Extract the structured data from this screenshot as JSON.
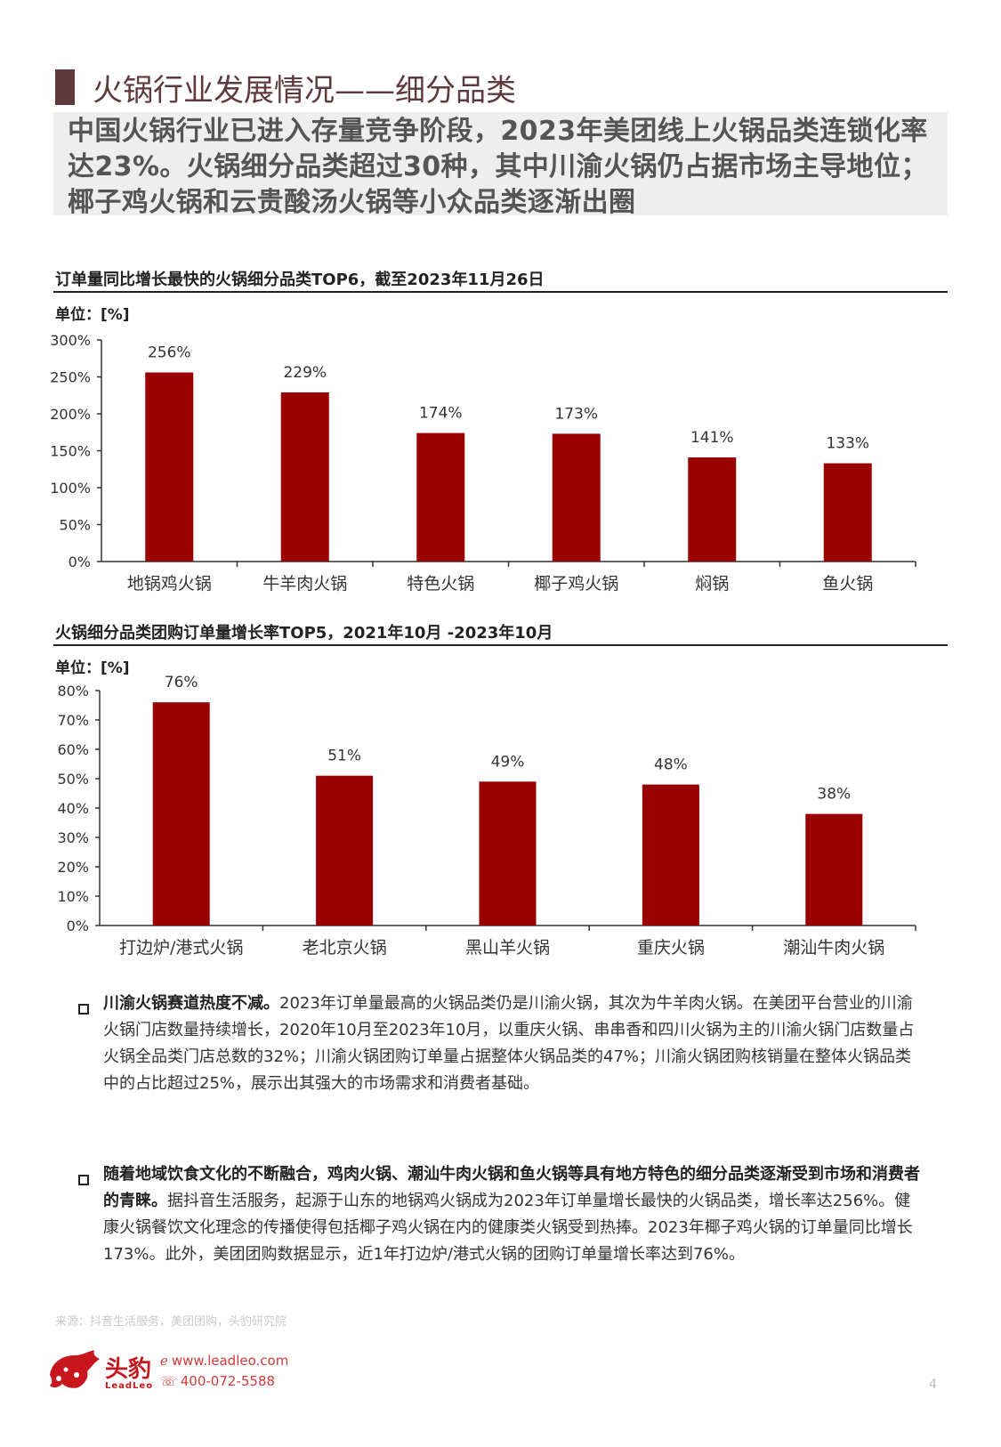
{
  "header": {
    "title": "火锅行业发展情况——细分品类",
    "summary": "中国火锅行业已进入存量竞争阶段，2023年美团线上火锅品类连锁化率达23%。火锅细分品类超过30种，其中川渝火锅仍占据市场主导地位；椰子鸡火锅和云贵酸汤火锅等小众品类逐渐出圈"
  },
  "colors": {
    "bar": "#990000",
    "accent": "#5e3a3c",
    "brand": "#c8161d"
  },
  "chart_data": [
    {
      "type": "bar",
      "title": "订单量同比增长最快的火锅细分品类TOP6，截至2023年11月26日",
      "unit": "单位：[%]",
      "categories": [
        "地锅鸡火锅",
        "牛羊肉火锅",
        "特色火锅",
        "椰子鸡火锅",
        "焖锅",
        "鱼火锅"
      ],
      "values": [
        256,
        229,
        174,
        173,
        141,
        133
      ],
      "data_labels": [
        "256%",
        "229%",
        "174%",
        "173%",
        "141%",
        "133%"
      ],
      "ylim": [
        0,
        300
      ],
      "yticks": [
        "0%",
        "50%",
        "100%",
        "150%",
        "200%",
        "250%",
        "300%"
      ],
      "grid": false,
      "legend": "none"
    },
    {
      "type": "bar",
      "title": "火锅细分品类团购订单量增长率TOP5，2021年10月 -2023年10月",
      "unit": "单位：[%]",
      "categories": [
        "打边炉/港式火锅",
        "老北京火锅",
        "黑山羊火锅",
        "重庆火锅",
        "潮汕牛肉火锅"
      ],
      "values": [
        76,
        51,
        49,
        48,
        38
      ],
      "data_labels": [
        "76%",
        "51%",
        "49%",
        "48%",
        "38%"
      ],
      "ylim": [
        0,
        80
      ],
      "yticks": [
        "0%",
        "10%",
        "20%",
        "30%",
        "40%",
        "50%",
        "60%",
        "70%",
        "80%"
      ],
      "grid": false,
      "legend": "none"
    }
  ],
  "bullets": [
    {
      "bold": "川渝火锅赛道热度不减。",
      "text": "2023年订单量最高的火锅品类仍是川渝火锅，其次为牛羊肉火锅。在美团平台营业的川渝火锅门店数量持续增长，2020年10月至2023年10月，以重庆火锅、串串香和四川火锅为主的川渝火锅门店数量占火锅全品类门店总数的32%；川渝火锅团购订单量占据整体火锅品类的47%；川渝火锅团购核销量在整体火锅品类中的占比超过25%，展示出其强大的市场需求和消费者基础。"
    },
    {
      "bold": "随着地域饮食文化的不断融合，鸡肉火锅、潮汕牛肉火锅和鱼火锅等具有地方特色的细分品类逐渐受到市场和消费者的青睐。",
      "text": "据抖音生活服务，起源于山东的地锅鸡火锅成为2023年订单量增长最快的火锅品类，增长率达256%。健康火锅餐饮文化理念的传播使得包括椰子鸡火锅在内的健康类火锅受到热捧。2023年椰子鸡火锅的订单量同比增长173%。此外，美团团购数据显示，近1年打边炉/港式火锅的团购订单量增长率达到76%。"
    }
  ],
  "footer": {
    "source": "来源：抖音生活服务，美团团购，头豹研究院",
    "logo_cn": "头豹",
    "logo_en": "LeadLeo",
    "website": "www.leadleo.com",
    "phone": "400-072-5588",
    "page_number": "4",
    "web_icon": "web-icon",
    "phone_icon": "phone-icon"
  }
}
